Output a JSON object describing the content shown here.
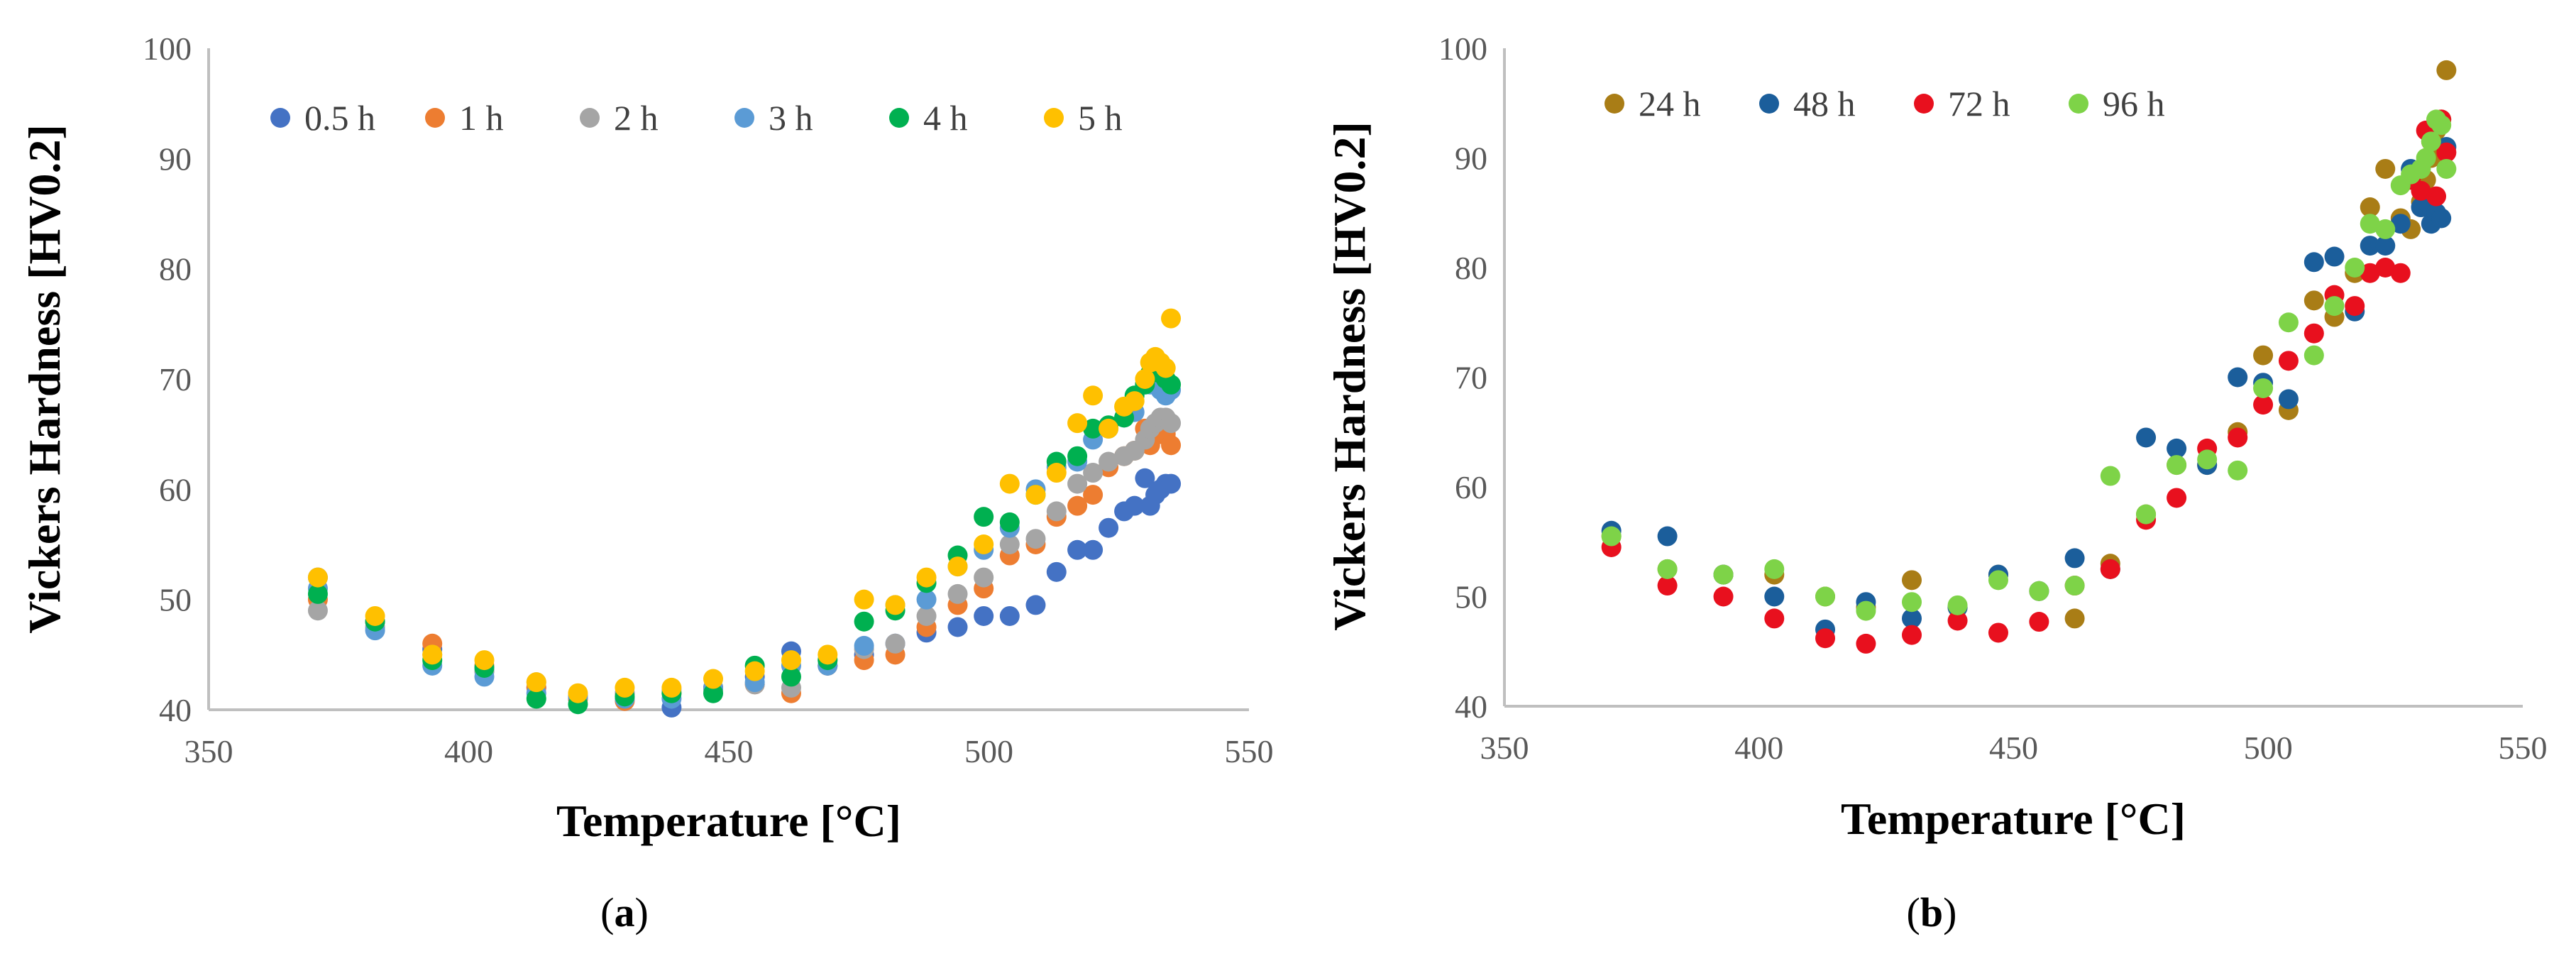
{
  "chart_data": [
    {
      "type": "scatter",
      "panel_label_open": "(",
      "panel_label_letter": "a",
      "panel_label_close": ")",
      "title": "",
      "xlabel": "Temperature [°C]",
      "ylabel": "Vickers Hardness [HV0.2]",
      "xlim": [
        350,
        550
      ],
      "ylim": [
        40,
        100
      ],
      "xticks": [
        350,
        400,
        450,
        500,
        550
      ],
      "yticks": [
        40,
        50,
        60,
        70,
        80,
        90,
        100
      ],
      "grid": false,
      "legend_position": "top-left",
      "series": [
        {
          "name": "0.5 h",
          "color": "#4472C4",
          "x": [
            371,
            382,
            393,
            403,
            413,
            421,
            430,
            439,
            447,
            455,
            462,
            469,
            476,
            482,
            488,
            494,
            499,
            504,
            509,
            513,
            517,
            520,
            523,
            526,
            528,
            530,
            531,
            532,
            533,
            534,
            535
          ],
          "y": [
            52.0,
            48.0,
            45.5,
            43.5,
            42.0,
            41.0,
            41.5,
            40.2,
            42.0,
            43.0,
            45.3,
            44.0,
            45.0,
            46.0,
            47.0,
            47.5,
            48.5,
            48.5,
            49.5,
            52.5,
            54.5,
            54.5,
            56.5,
            58.0,
            58.5,
            61.0,
            58.5,
            59.5,
            60.0,
            60.5,
            60.5
          ]
        },
        {
          "name": "1 h",
          "color": "#ED7D31",
          "x": [
            371,
            382,
            393,
            403,
            413,
            421,
            430,
            439,
            447,
            455,
            462,
            469,
            476,
            482,
            488,
            494,
            499,
            504,
            509,
            513,
            517,
            520,
            523,
            526,
            528,
            530,
            531,
            532,
            533,
            534,
            535
          ],
          "y": [
            50.0,
            48.0,
            46.0,
            44.0,
            42.0,
            41.0,
            40.8,
            41.5,
            42.0,
            42.3,
            41.5,
            44.0,
            44.5,
            45.0,
            47.5,
            49.5,
            51.0,
            54.0,
            55.0,
            57.5,
            58.5,
            59.5,
            62.0,
            63.0,
            63.5,
            65.5,
            64.0,
            65.0,
            65.0,
            65.0,
            64.0
          ]
        },
        {
          "name": "2 h",
          "color": "#A5A5A5",
          "x": [
            371,
            382,
            393,
            403,
            413,
            421,
            430,
            439,
            447,
            455,
            462,
            469,
            476,
            482,
            488,
            494,
            499,
            504,
            509,
            513,
            517,
            520,
            523,
            526,
            528,
            530,
            531,
            532,
            533,
            534,
            535
          ],
          "y": [
            49.0,
            47.5,
            45.0,
            43.5,
            42.5,
            41.3,
            41.5,
            41.8,
            41.8,
            42.3,
            42.0,
            44.5,
            45.5,
            46.0,
            48.5,
            50.5,
            52.0,
            55.0,
            55.5,
            58.0,
            60.5,
            61.5,
            62.5,
            63.0,
            63.5,
            64.5,
            65.5,
            66.0,
            66.5,
            66.5,
            66.0
          ]
        },
        {
          "name": "3 h",
          "color": "#5B9BD5",
          "x": [
            371,
            382,
            393,
            403,
            413,
            421,
            430,
            439,
            447,
            455,
            462,
            469,
            476,
            482,
            488,
            494,
            499,
            504,
            509,
            513,
            517,
            520,
            523,
            526,
            528,
            530,
            531,
            532,
            533,
            534,
            535
          ],
          "y": [
            51.0,
            47.2,
            44.0,
            43.0,
            41.5,
            41.2,
            41.0,
            41.0,
            42.0,
            42.5,
            44.0,
            44.0,
            45.8,
            49.5,
            50.0,
            53.0,
            54.5,
            56.5,
            60.0,
            62.0,
            62.5,
            64.5,
            65.5,
            66.5,
            67.0,
            69.5,
            69.5,
            70.0,
            69.0,
            68.5,
            69.0
          ]
        },
        {
          "name": "4 h",
          "color": "#00B050",
          "x": [
            371,
            382,
            393,
            403,
            413,
            421,
            430,
            439,
            447,
            455,
            462,
            469,
            476,
            482,
            488,
            494,
            499,
            504,
            509,
            513,
            517,
            520,
            523,
            526,
            528,
            530,
            531,
            532,
            533,
            534,
            535
          ],
          "y": [
            50.5,
            48.0,
            44.5,
            43.8,
            41.0,
            40.5,
            41.2,
            41.5,
            41.5,
            44.0,
            43.0,
            44.5,
            48.0,
            49.0,
            51.5,
            54.0,
            57.5,
            57.0,
            59.5,
            62.5,
            63.0,
            65.5,
            65.8,
            66.5,
            68.5,
            69.5,
            70.5,
            71.0,
            70.5,
            70.0,
            69.5
          ]
        },
        {
          "name": "5 h",
          "color": "#FFC000",
          "x": [
            371,
            382,
            393,
            403,
            413,
            421,
            430,
            439,
            447,
            455,
            462,
            469,
            476,
            482,
            488,
            494,
            499,
            504,
            509,
            513,
            517,
            520,
            523,
            526,
            528,
            530,
            531,
            532,
            533,
            534,
            535
          ],
          "y": [
            52.0,
            48.5,
            45.0,
            44.5,
            42.5,
            41.5,
            42.0,
            42.0,
            42.8,
            43.5,
            44.5,
            45.0,
            50.0,
            49.5,
            52.0,
            53.0,
            55.0,
            60.5,
            59.5,
            61.5,
            66.0,
            68.5,
            65.5,
            67.5,
            68.0,
            70.0,
            71.5,
            72.0,
            71.5,
            71.0,
            75.5
          ]
        }
      ]
    },
    {
      "type": "scatter",
      "panel_label_open": "(",
      "panel_label_letter": "b",
      "panel_label_close": ")",
      "title": "",
      "xlabel": "Temperature [°C]",
      "ylabel": "Vickers Hardness [HV0.2]",
      "xlim": [
        350,
        550
      ],
      "ylim": [
        40,
        100
      ],
      "xticks": [
        350,
        400,
        450,
        500,
        550
      ],
      "yticks": [
        40,
        50,
        60,
        70,
        80,
        90,
        100
      ],
      "grid": false,
      "legend_position": "top-left",
      "series": [
        {
          "name": "24 h",
          "color": "#A97D16",
          "x": [
            371,
            382,
            393,
            403,
            413,
            421,
            430,
            439,
            447,
            455,
            462,
            469,
            476,
            482,
            488,
            494,
            499,
            504,
            509,
            513,
            517,
            520,
            523,
            526,
            528,
            530,
            531,
            532,
            533,
            534,
            535
          ],
          "y": [
            55.5,
            52.5,
            52.0,
            52.0,
            50.0,
            49.0,
            51.5,
            49.0,
            52.0,
            50.5,
            48.0,
            53.0,
            57.5,
            62.0,
            62.0,
            65.0,
            72.0,
            67.0,
            77.0,
            75.5,
            79.5,
            85.5,
            89.0,
            84.5,
            83.5,
            86.0,
            88.0,
            90.0,
            92.5,
            93.5,
            98.0
          ]
        },
        {
          "name": "48 h",
          "color": "#1B5E9B",
          "x": [
            371,
            382,
            393,
            403,
            413,
            421,
            430,
            439,
            447,
            455,
            462,
            469,
            476,
            482,
            488,
            494,
            499,
            504,
            509,
            513,
            517,
            520,
            523,
            526,
            528,
            530,
            531,
            532,
            533,
            534,
            535
          ],
          "y": [
            56.0,
            55.5,
            52.0,
            50.0,
            47.0,
            49.5,
            48.0,
            49.0,
            52.0,
            50.5,
            53.5,
            52.5,
            64.5,
            63.5,
            62.0,
            70.0,
            69.5,
            68.0,
            80.5,
            81.0,
            76.0,
            82.0,
            82.0,
            84.0,
            89.0,
            85.5,
            86.0,
            84.0,
            85.0,
            84.5,
            91.0
          ]
        },
        {
          "name": "72 h",
          "color": "#E8101E",
          "x": [
            371,
            382,
            393,
            403,
            413,
            421,
            430,
            439,
            447,
            455,
            462,
            469,
            476,
            482,
            488,
            494,
            499,
            504,
            509,
            513,
            517,
            520,
            523,
            526,
            528,
            530,
            531,
            532,
            533,
            534,
            535
          ],
          "y": [
            54.5,
            51.0,
            50.0,
            48.0,
            46.2,
            45.7,
            46.5,
            47.8,
            46.7,
            47.7,
            51.0,
            52.5,
            57.0,
            59.0,
            63.5,
            64.5,
            67.5,
            71.5,
            74.0,
            77.5,
            76.5,
            79.5,
            80.0,
            79.5,
            88.0,
            87.0,
            92.5,
            91.5,
            86.5,
            93.5,
            90.5
          ]
        },
        {
          "name": "96 h",
          "color": "#7ED348",
          "x": [
            371,
            382,
            393,
            403,
            413,
            421,
            430,
            439,
            447,
            455,
            462,
            469,
            476,
            482,
            488,
            494,
            499,
            504,
            509,
            513,
            517,
            520,
            523,
            526,
            528,
            530,
            531,
            532,
            533,
            534,
            535
          ],
          "y": [
            55.5,
            52.5,
            52.0,
            52.5,
            50.0,
            48.7,
            49.5,
            49.2,
            51.5,
            50.5,
            51.0,
            61.0,
            57.5,
            62.0,
            62.5,
            61.5,
            69.0,
            75.0,
            72.0,
            76.5,
            80.0,
            84.0,
            83.5,
            87.5,
            88.5,
            89.0,
            90.0,
            91.5,
            93.5,
            93.0,
            89.0
          ]
        }
      ]
    }
  ]
}
